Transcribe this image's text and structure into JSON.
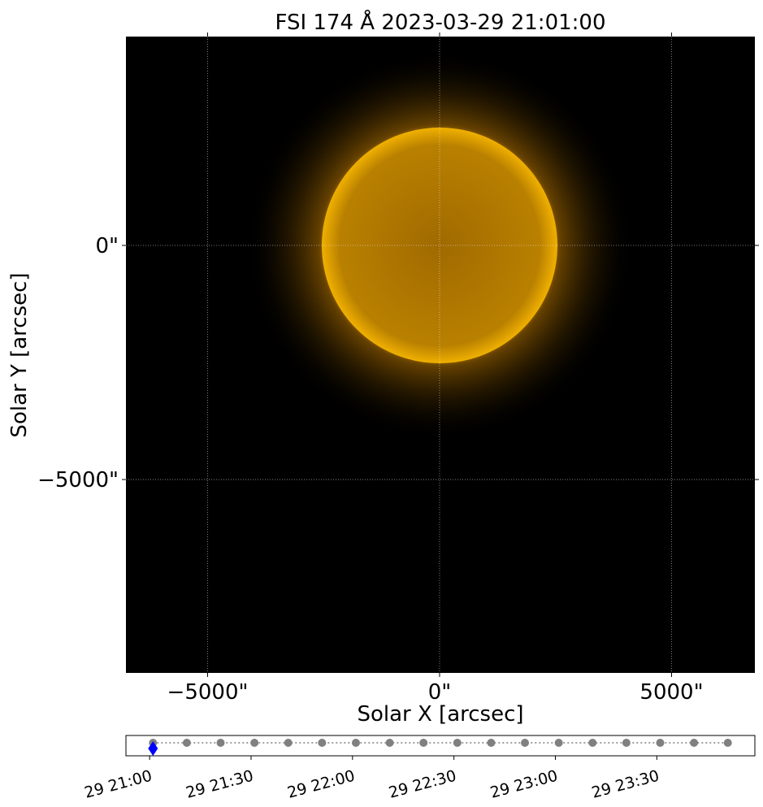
{
  "chart_data": [
    {
      "type": "image",
      "title": "FSI 174 Å 2023-03-29 21:01:00",
      "xlabel": "Solar X [arcsec]",
      "ylabel": "Solar Y [arcsec]",
      "xlim": [
        -6760,
        6795
      ],
      "ylim": [
        -9130,
        4460
      ],
      "xticks": [
        {
          "value": -5000,
          "label": "−5000\""
        },
        {
          "value": 0,
          "label": "0\""
        },
        {
          "value": 5000,
          "label": "5000\""
        }
      ],
      "yticks": [
        {
          "value": -5000,
          "label": "−5000\""
        },
        {
          "value": 0,
          "label": "0\""
        }
      ],
      "grid": true
    },
    {
      "type": "timeline",
      "x": [
        "21:01",
        "21:11",
        "21:21",
        "21:31",
        "21:41",
        "21:51",
        "22:01",
        "22:11",
        "22:21",
        "22:31",
        "22:41",
        "22:51",
        "23:01",
        "23:11",
        "23:21",
        "23:31",
        "23:41",
        "23:51"
      ],
      "color": "#808080",
      "current": {
        "x": "21:01",
        "color": "#0000ff"
      },
      "xlim": [
        "20:53",
        "23:59"
      ],
      "xticks": [
        {
          "value": "21:00",
          "label": "29 21:00"
        },
        {
          "value": "21:30",
          "label": "29 21:30"
        },
        {
          "value": "22:00",
          "label": "29 22:00"
        },
        {
          "value": "22:30",
          "label": "29 22:30"
        },
        {
          "value": "23:00",
          "label": "29 23:00"
        },
        {
          "value": "23:30",
          "label": "29 23:30"
        }
      ]
    }
  ]
}
